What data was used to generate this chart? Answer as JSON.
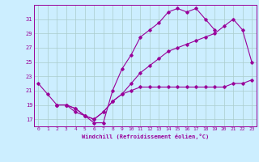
{
  "x_hours": [
    0,
    1,
    2,
    3,
    4,
    5,
    6,
    7,
    8,
    9,
    10,
    11,
    12,
    13,
    14,
    15,
    16,
    17,
    18,
    19,
    20,
    21,
    22,
    23
  ],
  "line1": [
    22,
    20.5,
    19,
    19,
    18,
    17.5,
    16.5,
    16.5,
    21,
    24,
    26,
    28.5,
    29.5,
    30.5,
    32,
    32.5,
    32,
    32.5,
    31,
    29.5,
    null,
    null,
    null,
    null
  ],
  "line2": [
    null,
    null,
    19,
    19,
    18.5,
    17.5,
    17,
    18,
    19.5,
    20.5,
    22,
    23.5,
    24.5,
    25.5,
    26.5,
    27,
    27.5,
    28,
    28.5,
    29,
    30,
    31,
    29.5,
    25
  ],
  "line3": [
    null,
    null,
    19,
    19,
    18.5,
    17.5,
    17,
    18,
    19.5,
    20.5,
    21,
    21.5,
    21.5,
    21.5,
    21.5,
    21.5,
    21.5,
    21.5,
    21.5,
    21.5,
    21.5,
    22,
    22,
    22.5
  ],
  "line_color": "#990099",
  "bg_color": "#cceeff",
  "grid_color": "#aacccc",
  "xlabel": "Windchill (Refroidissement éolien,°C)",
  "ylim": [
    16,
    33
  ],
  "yticks": [
    17,
    19,
    21,
    23,
    25,
    27,
    29,
    31
  ],
  "xlim": [
    -0.5,
    23.5
  ],
  "xticks": [
    0,
    1,
    2,
    3,
    4,
    5,
    6,
    7,
    8,
    9,
    10,
    11,
    12,
    13,
    14,
    15,
    16,
    17,
    18,
    19,
    20,
    21,
    22,
    23
  ]
}
